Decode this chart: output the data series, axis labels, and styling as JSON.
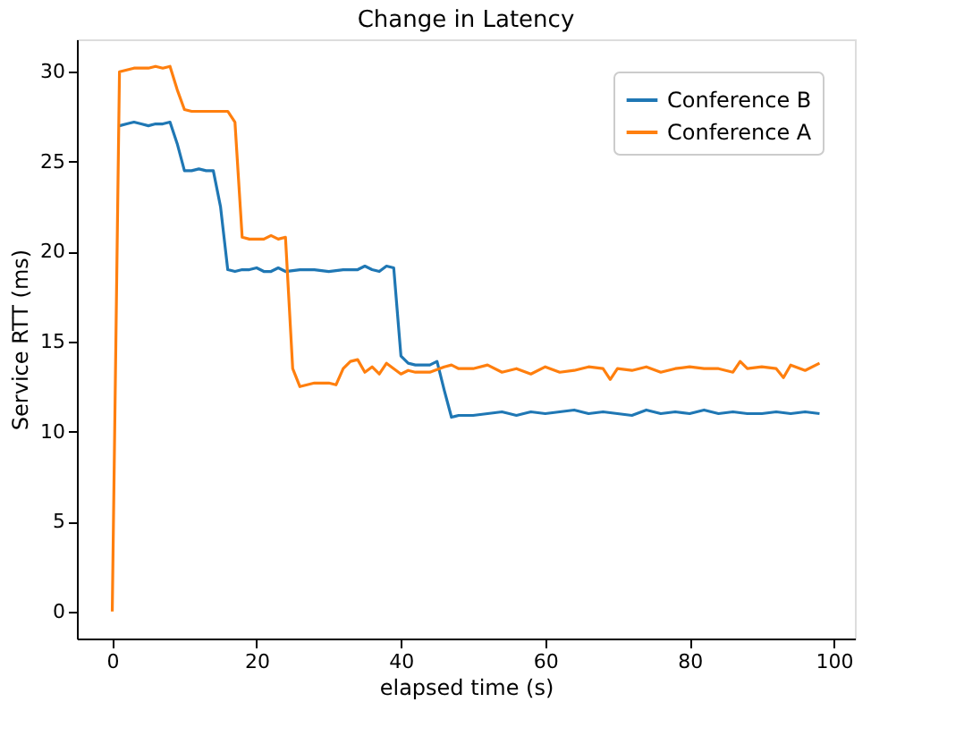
{
  "chart_data": {
    "type": "line",
    "title": "Change in Latency",
    "xlabel": "elapsed time (s)",
    "ylabel": "Service RTT (ms)",
    "xlim": [
      -4.9,
      102.9
    ],
    "xticks": [
      0,
      20,
      40,
      60,
      80,
      100
    ],
    "ylim": [
      -1.5,
      31.8
    ],
    "yticks": [
      0,
      5,
      10,
      15,
      20,
      25,
      30
    ],
    "grid": false,
    "legend": "top right",
    "line_style": "solid",
    "marker": "none",
    "series": [
      {
        "name": "Conference B",
        "color": "#1f77b4",
        "x": [
          1,
          2,
          3,
          4,
          5,
          6,
          7,
          8,
          9,
          10,
          11,
          12,
          13,
          14,
          15,
          16,
          17,
          18,
          19,
          20,
          21,
          22,
          23,
          24,
          26,
          28,
          30,
          32,
          34,
          35,
          36,
          37,
          38,
          39,
          40,
          41,
          42,
          43,
          44,
          45,
          46,
          47,
          48,
          50,
          52,
          54,
          56,
          58,
          60,
          62,
          64,
          66,
          68,
          70,
          72,
          74,
          76,
          78,
          80,
          82,
          83,
          84,
          86,
          88,
          90,
          92,
          94,
          96,
          98
        ],
        "values": [
          27.0,
          27.1,
          27.2,
          27.1,
          27.0,
          27.1,
          27.1,
          27.2,
          26.0,
          24.5,
          24.5,
          24.6,
          24.5,
          24.5,
          22.5,
          19.0,
          18.9,
          19.0,
          19.0,
          19.1,
          18.9,
          18.9,
          19.1,
          18.9,
          19.0,
          19.0,
          18.9,
          19.0,
          19.0,
          19.2,
          19.0,
          18.9,
          19.2,
          19.1,
          14.2,
          13.8,
          13.7,
          13.7,
          13.7,
          13.9,
          12.3,
          10.8,
          10.9,
          10.9,
          11.0,
          11.1,
          10.9,
          11.1,
          11.0,
          11.1,
          11.2,
          11.0,
          11.1,
          11.0,
          10.9,
          11.2,
          11.0,
          11.1,
          11.0,
          11.2,
          11.1,
          11.0,
          11.1,
          11.0,
          11.0,
          11.1,
          11.0,
          11.1,
          11.0
        ]
      },
      {
        "name": "Conference A",
        "color": "#ff7f0e",
        "x": [
          0,
          1,
          2,
          3,
          4,
          5,
          6,
          7,
          8,
          9,
          10,
          11,
          12,
          13,
          14,
          15,
          16,
          17,
          18,
          19,
          20,
          21,
          22,
          23,
          24,
          25,
          26,
          27,
          28,
          29,
          30,
          31,
          32,
          33,
          34,
          35,
          36,
          37,
          38,
          39,
          40,
          41,
          42,
          44,
          46,
          47,
          48,
          50,
          52,
          54,
          56,
          58,
          60,
          62,
          64,
          66,
          68,
          69,
          70,
          72,
          74,
          76,
          78,
          80,
          82,
          84,
          86,
          87,
          88,
          90,
          92,
          93,
          94,
          96,
          98
        ],
        "values": [
          0,
          30.0,
          30.1,
          30.2,
          30.2,
          30.2,
          30.3,
          30.2,
          30.3,
          29.0,
          27.9,
          27.8,
          27.8,
          27.8,
          27.8,
          27.8,
          27.8,
          27.2,
          20.8,
          20.7,
          20.7,
          20.7,
          20.9,
          20.7,
          20.8,
          13.5,
          12.5,
          12.6,
          12.7,
          12.7,
          12.7,
          12.6,
          13.5,
          13.9,
          14.0,
          13.3,
          13.6,
          13.2,
          13.8,
          13.5,
          13.2,
          13.4,
          13.3,
          13.3,
          13.6,
          13.7,
          13.5,
          13.5,
          13.7,
          13.3,
          13.5,
          13.2,
          13.6,
          13.3,
          13.4,
          13.6,
          13.5,
          12.9,
          13.5,
          13.4,
          13.6,
          13.3,
          13.5,
          13.6,
          13.5,
          13.5,
          13.3,
          13.9,
          13.5,
          13.6,
          13.5,
          13.0,
          13.7,
          13.4,
          13.8
        ]
      }
    ]
  }
}
